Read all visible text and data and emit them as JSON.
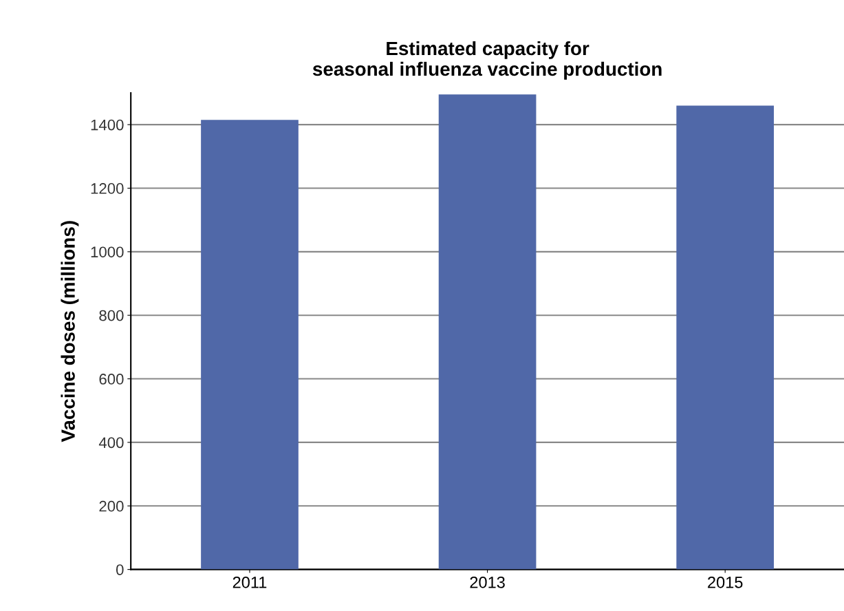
{
  "chart_data": {
    "type": "bar",
    "title": "Estimated capacity for\nseasonal influenza vaccine production",
    "ylabel": "Vaccine doses (millions)",
    "categories": [
      "2011",
      "2013",
      "2015"
    ],
    "values": [
      1415,
      1495,
      1460
    ],
    "color": "#5068a8",
    "ylim": [
      0,
      1500
    ],
    "yticks": [
      0,
      200,
      400,
      600,
      800,
      1000,
      1200,
      1400
    ],
    "grid": "y",
    "legend": false
  }
}
